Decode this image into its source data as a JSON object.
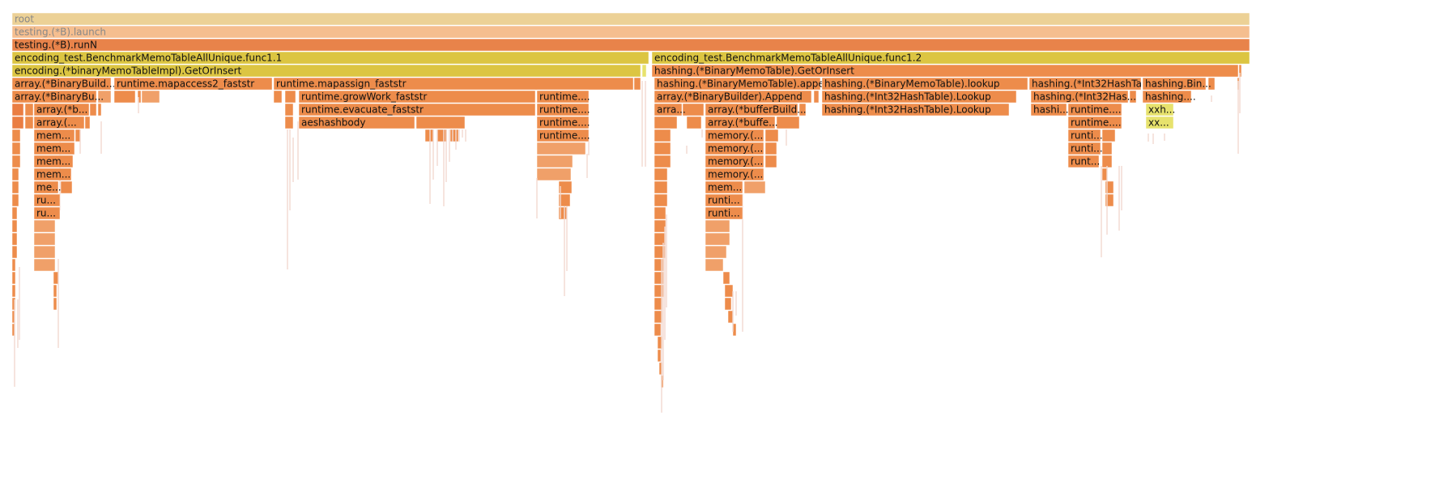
{
  "colors": {
    "root": "#ecd196",
    "launch": "#f5be8f",
    "runN": "#e8834a",
    "yellow": "#dcc542",
    "orange": "#ed8c4b",
    "deep": "#ea7d42",
    "light": "#f0a069",
    "lightyellow": "#e7e26d"
  },
  "flamegraph": {
    "frames": [
      {
        "id": "root",
        "label": "root",
        "color": "root",
        "muted": true
      },
      {
        "id": "launch",
        "label": "testing.(*B).launch",
        "color": "launch",
        "muted": true
      },
      {
        "id": "runN",
        "label": "testing.(*B).runN",
        "color": "runN"
      },
      {
        "id": "func1-1",
        "label": "encoding_test.BenchmarkMemoTableAllUnique.func1.1",
        "color": "yellow"
      },
      {
        "id": "func1-2",
        "label": "encoding_test.BenchmarkMemoTableAllUnique.func1.2",
        "color": "yellow"
      },
      {
        "id": "impl-getorinsert",
        "label": "encoding.(*binaryMemoTableImpl).GetOrInsert",
        "color": "yellow"
      },
      {
        "id": "hash-getorinsert",
        "label": "hashing.(*BinaryMemoTable).GetOrInsert",
        "color": "orange"
      },
      {
        "id": "l4-binarybuild",
        "label": "array.(*BinaryBuild...",
        "color": "orange"
      },
      {
        "id": "l4-mapaccess",
        "label": "runtime.mapaccess2_faststr",
        "color": "orange"
      },
      {
        "id": "l4-mapassign",
        "label": "runtime.mapassign_faststr",
        "color": "orange"
      },
      {
        "id": "l4-appe",
        "label": "hashing.(*BinaryMemoTable).appe...",
        "color": "orange"
      },
      {
        "id": "l4-lookup",
        "label": "hashing.(*BinaryMemoTable).lookup",
        "color": "orange"
      },
      {
        "id": "l4-int32",
        "label": "hashing.(*Int32HashTa...",
        "color": "orange"
      },
      {
        "id": "l4-hashbin",
        "label": "hashing.Bin...",
        "color": "orange"
      },
      {
        "id": "l5-binarybu",
        "label": "array.(*BinaryBu...",
        "color": "orange"
      },
      {
        "id": "l5-growwork",
        "label": "runtime.growWork_faststr",
        "color": "orange"
      },
      {
        "id": "l5-runtime-a",
        "label": "runtime....",
        "color": "orange"
      },
      {
        "id": "l5-append",
        "label": "array.(*BinaryBuilder).Append",
        "color": "orange"
      },
      {
        "id": "l5-int32lookup",
        "label": "hashing.(*Int32HashTable).Lookup",
        "color": "orange"
      },
      {
        "id": "l5-int32has",
        "label": "hashing.(*Int32Has...",
        "color": "orange"
      },
      {
        "id": "l5-hashing",
        "label": "hashing....",
        "color": "orange"
      },
      {
        "id": "l6-arrayb",
        "label": "array.(*b...",
        "color": "orange"
      },
      {
        "id": "l6-evacuate",
        "label": "runtime.evacuate_faststr",
        "color": "orange"
      },
      {
        "id": "l6-runtime-b",
        "label": "runtime....",
        "color": "orange"
      },
      {
        "id": "l6-arra",
        "label": "arra...",
        "color": "orange"
      },
      {
        "id": "l6-bufferbuild",
        "label": "array.(*bufferBuild...",
        "color": "orange"
      },
      {
        "id": "l6-int32lookup",
        "label": "hashing.(*Int32HashTable).Lookup",
        "color": "orange"
      },
      {
        "id": "l6-hashi",
        "label": "hashi...",
        "color": "orange"
      },
      {
        "id": "l6-runtime-c",
        "label": "runtime....",
        "color": "orange"
      },
      {
        "id": "l6-xxh",
        "label": "xxh...",
        "color": "lightyellow"
      },
      {
        "id": "l7-array",
        "label": "array.(...",
        "color": "orange"
      },
      {
        "id": "l7-aeshash",
        "label": "aeshashbody",
        "color": "orange"
      },
      {
        "id": "l7-runtime-d",
        "label": "runtime....",
        "color": "orange"
      },
      {
        "id": "l7-buffe",
        "label": "array.(*buffe...",
        "color": "orange"
      },
      {
        "id": "l7-runtime-e",
        "label": "runtime....",
        "color": "orange"
      },
      {
        "id": "l7-xx",
        "label": "xx...",
        "color": "lightyellow"
      },
      {
        "id": "l8-mem",
        "label": "mem...",
        "color": "orange"
      },
      {
        "id": "l8-runtime-f",
        "label": "runtime....",
        "color": "orange"
      },
      {
        "id": "l8-memory",
        "label": "memory.(...",
        "color": "orange"
      },
      {
        "id": "l8-runti",
        "label": "runti...",
        "color": "orange"
      },
      {
        "id": "l9-mem",
        "label": "mem...",
        "color": "orange"
      },
      {
        "id": "l9-memory",
        "label": "memory.(...",
        "color": "orange"
      },
      {
        "id": "l9-runti",
        "label": "runti...",
        "color": "orange"
      },
      {
        "id": "l10-mem",
        "label": "mem...",
        "color": "orange"
      },
      {
        "id": "l10-memory",
        "label": "memory.(...",
        "color": "orange"
      },
      {
        "id": "l10-runt",
        "label": "runt...",
        "color": "orange"
      },
      {
        "id": "l11-mem",
        "label": "mem...",
        "color": "orange"
      },
      {
        "id": "l11-memory",
        "label": "memory.(...",
        "color": "orange"
      },
      {
        "id": "l12-me",
        "label": "me...",
        "color": "orange"
      },
      {
        "id": "l12-mem",
        "label": "mem...",
        "color": "orange"
      },
      {
        "id": "l13-ru",
        "label": "ru...",
        "color": "orange"
      },
      {
        "id": "l13-runti",
        "label": "runti...",
        "color": "orange"
      },
      {
        "id": "l14-ru",
        "label": "ru...",
        "color": "orange"
      },
      {
        "id": "l14-runti",
        "label": "runti...",
        "color": "orange"
      }
    ]
  }
}
